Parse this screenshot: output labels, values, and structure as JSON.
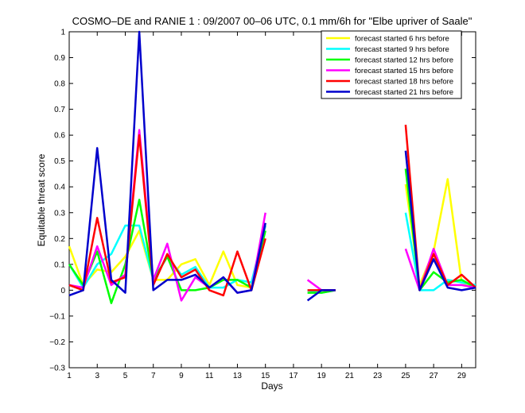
{
  "chart_data": {
    "type": "line",
    "title": "COSMO–DE and RANIE 1 : 09/2007 00–06 UTC, 0.1 mm/6h for \"Elbe upriver of Saale\"",
    "xlabel": "Days",
    "ylabel": "Equitable threat score",
    "xlim": [
      1,
      30
    ],
    "ylim": [
      -0.3,
      1
    ],
    "xticks": [
      "1",
      "3",
      "5",
      "7",
      "9",
      "11",
      "13",
      "15",
      "17",
      "19",
      "21",
      "23",
      "25",
      "27",
      "29"
    ],
    "yticks": [
      "−0.3",
      "−0.2",
      "−0.1",
      "0",
      "0.1",
      "0.2",
      "0.3",
      "0.4",
      "0.5",
      "0.6",
      "0.7",
      "0.8",
      "0.9",
      "1"
    ],
    "legend_position": "top-right",
    "grid": false,
    "series": [
      {
        "name": "forecast started 6 hrs before",
        "color": "#ffff00",
        "values": [
          0.17,
          0.02,
          0.08,
          0.07,
          0.13,
          0.23,
          0.04,
          0.04,
          0.1,
          0.12,
          0.02,
          0.15,
          0.02,
          0.01,
          0.25,
          null,
          null,
          null,
          null,
          null,
          null,
          null,
          null,
          null,
          0.41,
          0.02,
          0.15,
          0.43,
          0.03,
          0.01
        ]
      },
      {
        "name": "forecast started 9 hrs before",
        "color": "#00ffff",
        "values": [
          0.1,
          0.01,
          0.1,
          0.14,
          0.25,
          0.25,
          0.04,
          0.13,
          0.06,
          0.09,
          0.01,
          0.01,
          0.04,
          0.03,
          0.25,
          null,
          null,
          0.0,
          -0.01,
          0.0,
          null,
          null,
          null,
          null,
          0.3,
          0.0,
          0.0,
          0.04,
          0.03,
          0.02
        ]
      },
      {
        "name": "forecast started 12 hrs before",
        "color": "#00ff00",
        "values": [
          0.1,
          0.02,
          0.15,
          -0.05,
          0.1,
          0.35,
          0.04,
          0.13,
          0.0,
          0.0,
          0.01,
          0.04,
          0.04,
          0.01,
          0.23,
          null,
          null,
          -0.01,
          -0.01,
          0.0,
          null,
          null,
          null,
          null,
          0.47,
          0.0,
          0.07,
          0.03,
          0.04,
          0.01
        ]
      },
      {
        "name": "forecast started 15 hrs before",
        "color": "#ff00ff",
        "values": [
          0.02,
          0.01,
          0.17,
          0.02,
          0.06,
          0.62,
          0.04,
          0.18,
          -0.04,
          0.05,
          0.01,
          0.05,
          -0.01,
          0.0,
          0.3,
          null,
          null,
          0.04,
          0.0,
          0.0,
          null,
          null,
          null,
          null,
          0.16,
          0.0,
          0.16,
          0.02,
          0.02,
          0.01
        ]
      },
      {
        "name": "forecast started 18 hrs before",
        "color": "#ff0000",
        "values": [
          0.02,
          0.0,
          0.28,
          0.03,
          0.05,
          0.6,
          0.02,
          0.14,
          0.05,
          0.08,
          0.0,
          -0.02,
          0.15,
          0.0,
          0.2,
          null,
          null,
          0.0,
          0.0,
          0.0,
          null,
          null,
          null,
          null,
          0.64,
          0.0,
          0.14,
          0.02,
          0.06,
          0.01
        ]
      },
      {
        "name": "forecast started 21 hrs before",
        "color": "#0000cc",
        "values": [
          -0.02,
          0.0,
          0.55,
          0.04,
          -0.01,
          1.0,
          0.0,
          0.04,
          0.04,
          0.06,
          0.01,
          0.05,
          -0.01,
          0.0,
          0.26,
          null,
          null,
          -0.04,
          0.0,
          0.0,
          null,
          null,
          null,
          null,
          0.54,
          0.0,
          0.12,
          0.01,
          0.0,
          0.01
        ]
      }
    ]
  }
}
